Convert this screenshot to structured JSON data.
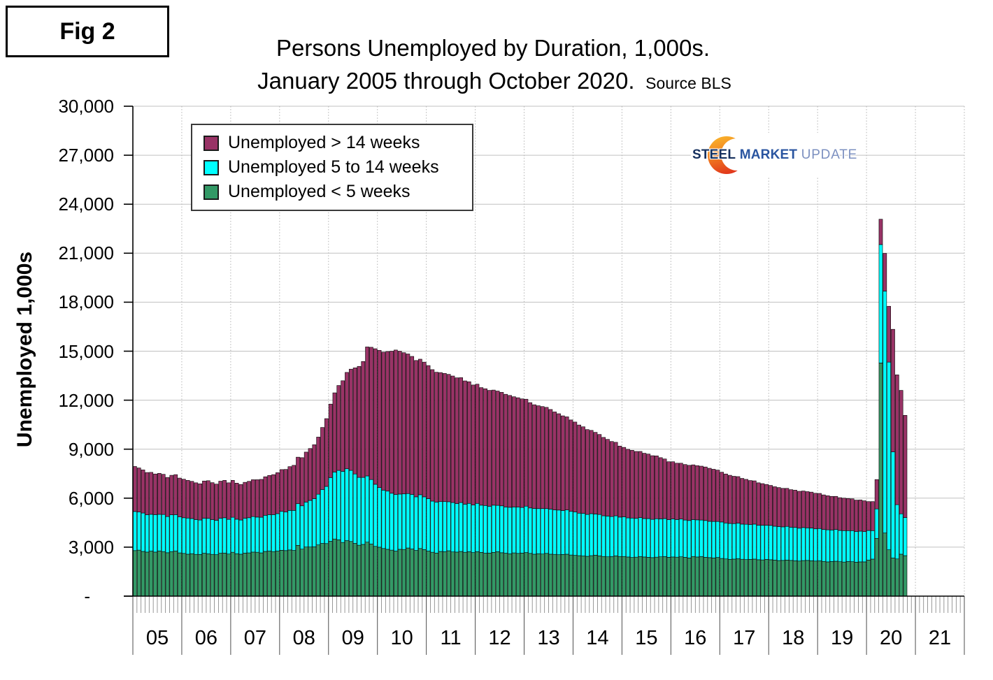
{
  "figure_label": "Fig 2",
  "title": {
    "line1": "Persons Unemployed by Duration, 1,000s.",
    "line2": "January 2005 through October 2020.",
    "source": "Source BLS"
  },
  "logo": {
    "steel": "STEEL",
    "market": "MARKET",
    "update": "UPDATE"
  },
  "y_axis": {
    "title": "Unemployed 1,000s",
    "ticks": [
      {
        "value": 0,
        "label": "-"
      },
      {
        "value": 3000,
        "label": "3,000"
      },
      {
        "value": 6000,
        "label": "6,000"
      },
      {
        "value": 9000,
        "label": "9,000"
      },
      {
        "value": 12000,
        "label": "12,000"
      },
      {
        "value": 15000,
        "label": "15,000"
      },
      {
        "value": 18000,
        "label": "18,000"
      },
      {
        "value": 21000,
        "label": "21,000"
      },
      {
        "value": 24000,
        "label": "24,000"
      },
      {
        "value": 27000,
        "label": "27,000"
      },
      {
        "value": 30000,
        "label": "30,000"
      }
    ]
  },
  "x_axis": {
    "year_labels": [
      "05",
      "06",
      "07",
      "08",
      "09",
      "10",
      "11",
      "12",
      "13",
      "14",
      "15",
      "16",
      "17",
      "18",
      "19",
      "20",
      "21"
    ]
  },
  "legend": [
    {
      "label": "Unemployed > 14 weeks",
      "color": "#993366"
    },
    {
      "label": "Unemployed 5 to 14 weeks",
      "color": "#00FFFF"
    },
    {
      "label": "Unemployed < 5 weeks",
      "color": "#339966"
    }
  ],
  "chart_data": {
    "type": "bar",
    "stacked": true,
    "title": "Persons Unemployed by Duration, 1,000s. January 2005 through October 2020.",
    "x_unit": "month",
    "x_start": "2005-01",
    "x_end": "2020-10",
    "x_axis_years_shown": "2005 through 2021",
    "ylabel": "Unemployed 1,000s",
    "ylim": [
      0,
      30000
    ],
    "gridline_step": 3000,
    "grid": true,
    "legend_position": "upper-left",
    "bar_outline_color": "#000000",
    "gridline_color": "#C0C0C0",
    "series": [
      {
        "name": "Unemployed < 5 weeks",
        "color": "#339966",
        "stack_order": "bottom",
        "values": [
          2790,
          2820,
          2740,
          2700,
          2760,
          2700,
          2770,
          2730,
          2660,
          2730,
          2760,
          2650,
          2620,
          2570,
          2600,
          2560,
          2550,
          2630,
          2590,
          2560,
          2540,
          2630,
          2640,
          2580,
          2690,
          2600,
          2570,
          2640,
          2650,
          2700,
          2690,
          2650,
          2740,
          2760,
          2730,
          2760,
          2810,
          2790,
          2830,
          2800,
          3110,
          2880,
          3010,
          3010,
          3020,
          3140,
          3230,
          3220,
          3360,
          3500,
          3450,
          3290,
          3400,
          3350,
          3230,
          3120,
          3170,
          3310,
          3190,
          3050,
          3000,
          2920,
          2870,
          2820,
          2760,
          2870,
          2860,
          2950,
          2890,
          2800,
          2920,
          2850,
          2760,
          2690,
          2640,
          2740,
          2720,
          2780,
          2710,
          2700,
          2740,
          2690,
          2720,
          2670,
          2720,
          2680,
          2630,
          2640,
          2680,
          2720,
          2660,
          2630,
          2590,
          2650,
          2620,
          2640,
          2670,
          2620,
          2570,
          2600,
          2580,
          2620,
          2570,
          2560,
          2540,
          2550,
          2570,
          2520,
          2500,
          2480,
          2460,
          2440,
          2480,
          2510,
          2470,
          2430,
          2410,
          2420,
          2470,
          2430,
          2430,
          2400,
          2370,
          2390,
          2420,
          2400,
          2380,
          2360,
          2390,
          2410,
          2420,
          2380,
          2400,
          2390,
          2410,
          2380,
          2340,
          2430,
          2400,
          2420,
          2380,
          2360,
          2340,
          2370,
          2310,
          2280,
          2250,
          2270,
          2290,
          2260,
          2240,
          2250,
          2270,
          2230,
          2220,
          2250,
          2230,
          2210,
          2180,
          2190,
          2210,
          2190,
          2170,
          2150,
          2180,
          2190,
          2170,
          2150,
          2160,
          2130,
          2100,
          2120,
          2140,
          2110,
          2090,
          2120,
          2110,
          2080,
          2100,
          2100,
          2210,
          2270,
          3540,
          14280,
          3870,
          2840,
          2340,
          2280,
          2570,
          2480
        ]
      },
      {
        "name": "Unemployed 5 to 14 weeks",
        "color": "#00FFFF",
        "stack_order": "middle",
        "values": [
          2390,
          2330,
          2350,
          2280,
          2250,
          2290,
          2240,
          2270,
          2210,
          2250,
          2230,
          2200,
          2180,
          2210,
          2150,
          2130,
          2110,
          2140,
          2170,
          2130,
          2100,
          2140,
          2160,
          2120,
          2140,
          2110,
          2090,
          2130,
          2150,
          2170,
          2150,
          2180,
          2210,
          2230,
          2260,
          2290,
          2380,
          2360,
          2420,
          2450,
          2550,
          2650,
          2750,
          2850,
          2950,
          3100,
          3300,
          3500,
          3900,
          4100,
          4250,
          4350,
          4400,
          4350,
          4250,
          4150,
          4100,
          4050,
          3950,
          3800,
          3650,
          3570,
          3560,
          3480,
          3460,
          3380,
          3400,
          3330,
          3340,
          3280,
          3290,
          3230,
          3210,
          3130,
          3120,
          3050,
          3070,
          3000,
          3020,
          2970,
          2990,
          2940,
          2960,
          2910,
          2960,
          2890,
          2920,
          2860,
          2890,
          2840,
          2870,
          2830,
          2850,
          2810,
          2830,
          2790,
          2840,
          2780,
          2800,
          2760,
          2780,
          2740,
          2760,
          2720,
          2730,
          2690,
          2710,
          2670,
          2660,
          2600,
          2610,
          2560,
          2570,
          2520,
          2530,
          2490,
          2490,
          2450,
          2450,
          2410,
          2430,
          2390,
          2410,
          2370,
          2390,
          2350,
          2370,
          2340,
          2350,
          2320,
          2330,
          2300,
          2330,
          2300,
          2310,
          2280,
          2290,
          2260,
          2270,
          2240,
          2250,
          2220,
          2230,
          2200,
          2230,
          2200,
          2200,
          2170,
          2180,
          2150,
          2160,
          2130,
          2140,
          2110,
          2120,
          2090,
          2100,
          2070,
          2080,
          2050,
          2060,
          2030,
          2040,
          2010,
          2020,
          1990,
          2000,
          1970,
          1980,
          1950,
          1960,
          1930,
          1940,
          1910,
          1920,
          1890,
          1900,
          1870,
          1880,
          1850,
          1810,
          1740,
          1800,
          7250,
          14810,
          11490,
          6490,
          3320,
          2470,
          2330
        ]
      },
      {
        "name": "Unemployed > 14 weeks",
        "color": "#993366",
        "stack_order": "top",
        "values": [
          2760,
          2700,
          2640,
          2590,
          2570,
          2490,
          2510,
          2460,
          2400,
          2420,
          2450,
          2380,
          2360,
          2310,
          2280,
          2250,
          2220,
          2280,
          2310,
          2260,
          2220,
          2270,
          2290,
          2240,
          2260,
          2210,
          2180,
          2200,
          2230,
          2260,
          2290,
          2320,
          2360,
          2400,
          2450,
          2510,
          2560,
          2610,
          2680,
          2760,
          2850,
          2950,
          3060,
          3180,
          3300,
          3500,
          3800,
          4150,
          4500,
          4850,
          5200,
          5550,
          5900,
          6200,
          6500,
          6800,
          7100,
          7900,
          8100,
          8300,
          8400,
          8450,
          8550,
          8700,
          8850,
          8750,
          8650,
          8550,
          8450,
          8350,
          8300,
          8250,
          8150,
          8050,
          7950,
          7900,
          7850,
          7800,
          7750,
          7700,
          7650,
          7550,
          7450,
          7350,
          7300,
          7200,
          7150,
          7100,
          7050,
          7000,
          6950,
          6900,
          6850,
          6750,
          6700,
          6650,
          6550,
          6450,
          6350,
          6300,
          6250,
          6200,
          6100,
          6000,
          5900,
          5800,
          5700,
          5600,
          5500,
          5400,
          5300,
          5200,
          5100,
          5000,
          4900,
          4800,
          4700,
          4600,
          4500,
          4350,
          4250,
          4200,
          4150,
          4100,
          4050,
          4000,
          3950,
          3900,
          3850,
          3750,
          3650,
          3550,
          3500,
          3450,
          3420,
          3400,
          3380,
          3350,
          3320,
          3300,
          3280,
          3250,
          3200,
          3150,
          3050,
          3000,
          2950,
          2900,
          2850,
          2800,
          2750,
          2700,
          2650,
          2600,
          2550,
          2500,
          2450,
          2420,
          2390,
          2360,
          2330,
          2300,
          2280,
          2260,
          2240,
          2220,
          2200,
          2180,
          2150,
          2120,
          2090,
          2060,
          2030,
          2010,
          1990,
          1970,
          1950,
          1930,
          1910,
          1890,
          1770,
          1780,
          1800,
          1550,
          2310,
          3420,
          7510,
          7950,
          7560,
          6260
        ]
      }
    ]
  }
}
